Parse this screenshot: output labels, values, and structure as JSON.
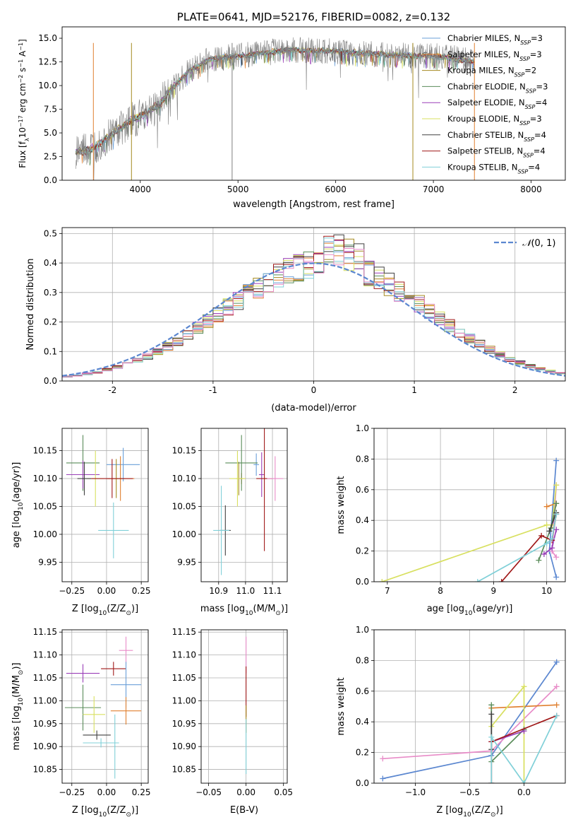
{
  "chart_data": [
    {
      "id": "spectrum",
      "type": "line",
      "title": "PLATE=0641, MJD=52176, FIBERID=0082, z=0.132",
      "xlabel": "wavelength [Angstrom, rest frame]",
      "ylabel_parts": [
        "Flux [f",
        "λ",
        "10",
        "−17",
        " erg cm",
        "−2",
        " s",
        "−1",
        " A",
        "−1",
        "]"
      ],
      "xlim": [
        3200,
        8350
      ],
      "ylim": [
        0,
        16.2
      ],
      "xticks": [
        4000,
        5000,
        6000,
        7000,
        8000
      ],
      "yticks": [
        0.0,
        2.5,
        5.0,
        7.5,
        10.0,
        12.5,
        15.0
      ],
      "wave_range": [
        3340,
        7420
      ],
      "legend": [
        {
          "name": "Chabrier MILES, N",
          "sub": "SSP",
          "suffix": "=3",
          "color": "#6a9fd8"
        },
        {
          "name": "Salpeter MILES, N",
          "sub": "SSP",
          "suffix": "=3",
          "color": "#e08030"
        },
        {
          "name": "Kroupa MILES, N",
          "sub": "SSP",
          "suffix": "=2",
          "color": "#a58a20"
        },
        {
          "name": "Chabrier ELODIE, N",
          "sub": "SSP",
          "suffix": "=3",
          "color": "#5a8c5a"
        },
        {
          "name": "Salpeter ELODIE, N",
          "sub": "SSP",
          "suffix": "=4",
          "color": "#9a3fb8"
        },
        {
          "name": "Kroupa ELODIE, N",
          "sub": "SSP",
          "suffix": "=3",
          "color": "#d8e060"
        },
        {
          "name": "Chabrier STELIB, N",
          "sub": "SSP",
          "suffix": "=4",
          "color": "#404040"
        },
        {
          "name": "Salpeter STELIB, N",
          "sub": "SSP",
          "suffix": "=4",
          "color": "#a01818"
        },
        {
          "name": "Kroupa STELIB, N",
          "sub": "SSP",
          "suffix": "=4",
          "color": "#80d0d8"
        }
      ],
      "data_color": "#808080",
      "shape_x": [
        3340,
        3500,
        3700,
        3900,
        4000,
        4200,
        4300,
        4500,
        4700,
        4800,
        5000,
        5200,
        5400,
        5500,
        5700,
        6000,
        6300,
        6600,
        7000,
        7200,
        7400
      ],
      "shape_y": [
        3.0,
        3.3,
        4.8,
        6.2,
        6.8,
        8.0,
        9.5,
        11.5,
        12.7,
        12.9,
        13.1,
        13.4,
        13.6,
        13.8,
        13.7,
        13.6,
        13.4,
        13.2,
        13.1,
        12.9,
        12.5
      ],
      "spike_lines": [
        {
          "x": 3520,
          "color": "#e08030"
        },
        {
          "x": 3910,
          "color": "#a58a20"
        },
        {
          "x": 4940,
          "color": "#808080"
        },
        {
          "x": 6790,
          "color": "#a58a20"
        },
        {
          "x": 7420,
          "color": "#e08030"
        }
      ]
    },
    {
      "id": "residuals",
      "type": "histogram",
      "xlabel": "(data-model)/error",
      "ylabel": "Normed distribution",
      "xlim": [
        -2.5,
        2.5
      ],
      "ylim": [
        0,
        0.52
      ],
      "xticks": [
        -2,
        -1,
        0,
        1,
        2
      ],
      "yticks": [
        0.0,
        0.1,
        0.2,
        0.3,
        0.4,
        0.5
      ],
      "legend_label": "N(0, 1)",
      "legend_prefix": "𝒩",
      "legend_suffix": "(0, 1)",
      "curve_color": "#5b87d0",
      "bin_width": 0.1,
      "bin_start": -2.5
    },
    {
      "id": "age-vs-Z",
      "type": "scatter",
      "xlabel_parts": [
        "Z [log",
        "10",
        "(Z/Z",
        "⊙",
        ")]"
      ],
      "ylabel_parts": [
        "age  [log",
        "10",
        "(age/yr)]"
      ],
      "xlim": [
        -0.32,
        0.3
      ],
      "ylim": [
        9.915,
        10.19
      ],
      "xticks": [
        -0.25,
        0.0,
        0.25
      ],
      "xtick_labels": [
        "−0.25",
        "0.00",
        "0.25"
      ],
      "yticks": [
        9.95,
        10.0,
        10.05,
        10.1,
        10.15
      ],
      "ytick_labels": [
        "9.95",
        "10.00",
        "10.05",
        "10.10",
        "10.15"
      ],
      "points": [
        {
          "x": 0.12,
          "y": 10.125,
          "xerr": 0.12,
          "yerr": 0.03,
          "color": "#6a9fd8"
        },
        {
          "x": 0.1,
          "y": 10.1,
          "xerr": 0.1,
          "yerr": 0.04,
          "color": "#e08030"
        },
        {
          "x": 0.07,
          "y": 10.1,
          "xerr": 0.06,
          "yerr": 0.035,
          "color": "#a58a20"
        },
        {
          "x": -0.17,
          "y": 10.128,
          "xerr": 0.12,
          "yerr": 0.05,
          "color": "#5a8c5a"
        },
        {
          "x": -0.17,
          "y": 10.107,
          "xerr": 0.12,
          "yerr": 0.025,
          "color": "#9a3fb8"
        },
        {
          "x": -0.08,
          "y": 10.1,
          "xerr": 0.06,
          "yerr": 0.05,
          "color": "#d8e060"
        },
        {
          "x": -0.16,
          "y": 10.1,
          "xerr": 0.05,
          "yerr": 0.03,
          "color": "#404040"
        },
        {
          "x": 0.04,
          "y": 10.1,
          "xerr": 0.15,
          "yerr": 0.035,
          "color": "#a01818"
        },
        {
          "x": 0.05,
          "y": 10.007,
          "xerr": 0.11,
          "yerr": 0.05,
          "color": "#80d0d8"
        }
      ]
    },
    {
      "id": "age-vs-mass",
      "type": "scatter",
      "xlabel_parts": [
        "mass [log",
        "10",
        "(M/M",
        "⊙",
        ")]"
      ],
      "xlim": [
        10.835,
        11.155
      ],
      "ylim": [
        9.915,
        10.19
      ],
      "xticks": [
        10.9,
        11.0,
        11.1
      ],
      "xtick_labels": [
        "10.9",
        "11.0",
        "11.1"
      ],
      "yticks": [
        9.95,
        10.0,
        10.05,
        10.1,
        10.15
      ],
      "ytick_labels": [
        "9.95",
        "10.00",
        "10.05",
        "10.10",
        "10.15"
      ],
      "points": [
        {
          "x": 11.04,
          "y": 10.125,
          "xerr": 0.01,
          "yerr": 0.02,
          "color": "#6a9fd8"
        },
        {
          "x": 10.985,
          "y": 10.1,
          "xerr": 0.01,
          "yerr": 0.01,
          "color": "#e08030"
        },
        {
          "x": 10.975,
          "y": 10.1,
          "xerr": 0.01,
          "yerr": 0.03,
          "color": "#a58a20"
        },
        {
          "x": 10.985,
          "y": 10.128,
          "xerr": 0.06,
          "yerr": 0.05,
          "color": "#5a8c5a"
        },
        {
          "x": 11.06,
          "y": 10.107,
          "xerr": 0.01,
          "yerr": 0.04,
          "color": "#9a3fb8"
        },
        {
          "x": 10.97,
          "y": 10.1,
          "xerr": 0.03,
          "yerr": 0.05,
          "color": "#d8e060"
        },
        {
          "x": 10.925,
          "y": 10.007,
          "xerr": 0.02,
          "yerr": 0.045,
          "color": "#404040"
        },
        {
          "x": 11.07,
          "y": 10.1,
          "xerr": 0.03,
          "yerr": 0.13,
          "color": "#a01818"
        },
        {
          "x": 11.11,
          "y": 10.1,
          "xerr": 0.03,
          "yerr": 0.04,
          "color": "#e88cc8"
        },
        {
          "x": 10.91,
          "y": 10.007,
          "xerr": 0.03,
          "yerr": 0.08,
          "color": "#80d0d8"
        }
      ]
    },
    {
      "id": "weight-vs-age",
      "type": "line",
      "xlabel_parts": [
        "age  [log",
        "10",
        "(age/yr)]"
      ],
      "ylabel": "mass weight",
      "xlim": [
        6.75,
        10.35
      ],
      "ylim": [
        0,
        1
      ],
      "xticks": [
        7,
        8,
        9,
        10
      ],
      "yticks": [
        0.0,
        0.2,
        0.4,
        0.6,
        0.8,
        1.0
      ],
      "series": [
        {
          "color": "#5b87d0",
          "x": [
            10.18,
            10.05,
            10.18
          ],
          "y": [
            0.03,
            0.2,
            0.79
          ]
        },
        {
          "color": "#e08030",
          "x": [
            10.0,
            10.18
          ],
          "y": [
            0.49,
            0.51
          ]
        },
        {
          "color": "#e88cc8",
          "x": [
            10.18,
            10.1,
            10.18
          ],
          "y": [
            0.16,
            0.2,
            0.63
          ]
        },
        {
          "color": "#d8e060",
          "x": [
            6.9,
            10.0,
            10.1,
            10.18
          ],
          "y": [
            0.0,
            0.37,
            0.37,
            0.63
          ]
        },
        {
          "color": "#5a8c5a",
          "x": [
            9.85,
            10.08,
            10.18
          ],
          "y": [
            0.14,
            0.35,
            0.51
          ]
        },
        {
          "color": "#9a3fb8",
          "x": [
            9.95,
            10.1,
            10.18
          ],
          "y": [
            0.18,
            0.22,
            0.34
          ]
        },
        {
          "color": "#404040",
          "x": [
            10.05,
            10.18
          ],
          "y": [
            0.33,
            0.45
          ]
        },
        {
          "color": "#a01818",
          "x": [
            9.15,
            9.9,
            10.1,
            10.18
          ],
          "y": [
            0.0,
            0.3,
            0.27,
            0.44
          ]
        },
        {
          "color": "#80d0d8",
          "x": [
            8.7,
            10.0,
            10.1,
            10.18
          ],
          "y": [
            0.0,
            0.25,
            0.28,
            0.44
          ]
        }
      ]
    },
    {
      "id": "mass-vs-Z",
      "type": "scatter",
      "xlabel_parts": [
        "Z [log",
        "10",
        "(Z/Z",
        "⊙",
        ")]"
      ],
      "ylabel_parts": [
        "mass [log",
        "10",
        "(M/M",
        "⊙",
        ")]"
      ],
      "xlim": [
        -0.32,
        0.3
      ],
      "ylim": [
        10.82,
        11.155
      ],
      "xticks": [
        -0.25,
        0.0,
        0.25
      ],
      "xtick_labels": [
        "−0.25",
        "0.00",
        "0.25"
      ],
      "yticks": [
        10.85,
        10.9,
        10.95,
        11.0,
        11.05,
        11.1,
        11.15
      ],
      "ytick_labels": [
        "10.85",
        "10.90",
        "10.95",
        "11.00",
        "11.05",
        "11.10",
        "11.15"
      ],
      "points": [
        {
          "x": 0.14,
          "y": 11.11,
          "xerr": 0.05,
          "yerr": 0.03,
          "color": "#e88cc8"
        },
        {
          "x": 0.05,
          "y": 11.07,
          "xerr": 0.09,
          "yerr": 0.015,
          "color": "#a01818"
        },
        {
          "x": -0.17,
          "y": 11.06,
          "xerr": 0.12,
          "yerr": 0.02,
          "color": "#9a3fb8"
        },
        {
          "x": 0.14,
          "y": 11.035,
          "xerr": 0.11,
          "yerr": 0.05,
          "color": "#6a9fd8"
        },
        {
          "x": -0.17,
          "y": 10.985,
          "xerr": 0.13,
          "yerr": 0.05,
          "color": "#5a8c5a"
        },
        {
          "x": 0.14,
          "y": 10.978,
          "xerr": 0.11,
          "yerr": 0.03,
          "color": "#e08030"
        },
        {
          "x": -0.09,
          "y": 10.97,
          "xerr": 0.08,
          "yerr": 0.04,
          "color": "#d8e060"
        },
        {
          "x": -0.07,
          "y": 10.925,
          "xerr": 0.1,
          "yerr": 0.01,
          "color": "#404040"
        },
        {
          "x": -0.04,
          "y": 10.908,
          "xerr": 0.13,
          "yerr": 0.01,
          "color": "#80d0d8"
        },
        {
          "x": 0.06,
          "y": 10.9,
          "xerr": 0.005,
          "yerr": 0.07,
          "color": "#80d0d8"
        }
      ]
    },
    {
      "id": "mass-vs-ebv",
      "type": "scatter",
      "xlabel": "E(B-V)",
      "xlim": [
        -0.06,
        0.055
      ],
      "ylim": [
        10.82,
        11.155
      ],
      "xticks": [
        -0.05,
        0.0,
        0.05
      ],
      "xtick_labels": [
        "−0.05",
        "0.00",
        "0.05"
      ],
      "yticks": [
        10.85,
        10.9,
        10.95,
        11.0,
        11.05,
        11.1,
        11.15
      ],
      "ytick_labels": [
        "10.85",
        "10.90",
        "10.95",
        "11.00",
        "11.05",
        "11.10",
        "11.15"
      ],
      "points": [
        {
          "x": 0.0,
          "y": 11.1,
          "xerr": 0.0,
          "yerr": 0.04,
          "color": "#e88cc8"
        },
        {
          "x": 0.0,
          "y": 11.02,
          "xerr": 0.0,
          "yerr": 0.055,
          "color": "#a01818"
        },
        {
          "x": 0.0,
          "y": 10.96,
          "xerr": 0.0,
          "yerr": 0.03,
          "color": "#a58a20"
        },
        {
          "x": 0.0,
          "y": 10.9,
          "xerr": 0.0,
          "yerr": 0.06,
          "color": "#80d0d8"
        }
      ]
    },
    {
      "id": "weight-vs-Z",
      "type": "line",
      "xlabel_parts": [
        "Z [log",
        "10",
        "(Z/Z",
        "⊙",
        ")]"
      ],
      "ylabel": "mass weight",
      "xlim": [
        -1.38,
        0.38
      ],
      "ylim": [
        0,
        1
      ],
      "xticks": [
        -1.0,
        -0.5,
        0.0
      ],
      "xtick_labels": [
        "−1.0",
        "−0.5",
        "0.0"
      ],
      "yticks": [
        0.0,
        0.2,
        0.4,
        0.6,
        0.8,
        1.0
      ],
      "series": [
        {
          "color": "#5b87d0",
          "x": [
            -1.3,
            -0.3,
            0.3
          ],
          "y": [
            0.03,
            0.18,
            0.79
          ]
        },
        {
          "color": "#e88cc8",
          "x": [
            -1.3,
            -0.3,
            0.3
          ],
          "y": [
            0.16,
            0.21,
            0.63
          ]
        },
        {
          "color": "#e08030",
          "x": [
            -0.3,
            0.3
          ],
          "y": [
            0.49,
            0.51
          ]
        },
        {
          "color": "#d8e060",
          "x": [
            -0.3,
            0.0,
            0.0
          ],
          "y": [
            0.37,
            0.63,
            0.0
          ]
        },
        {
          "color": "#5a8c5a",
          "x": [
            -0.3,
            -0.3,
            0.0
          ],
          "y": [
            0.51,
            0.14,
            0.35
          ]
        },
        {
          "color": "#9a3fb8",
          "x": [
            -0.3,
            0.0
          ],
          "y": [
            0.27,
            0.34
          ]
        },
        {
          "color": "#404040",
          "x": [
            -0.3,
            -0.3
          ],
          "y": [
            0.22,
            0.45
          ]
        },
        {
          "color": "#a01818",
          "x": [
            -0.3,
            -0.3,
            0.3
          ],
          "y": [
            0.0,
            0.27,
            0.44
          ]
        },
        {
          "color": "#80d0d8",
          "x": [
            -0.3,
            -0.3,
            0.0,
            0.3
          ],
          "y": [
            0.0,
            0.3,
            0.0,
            0.44
          ]
        }
      ]
    }
  ]
}
